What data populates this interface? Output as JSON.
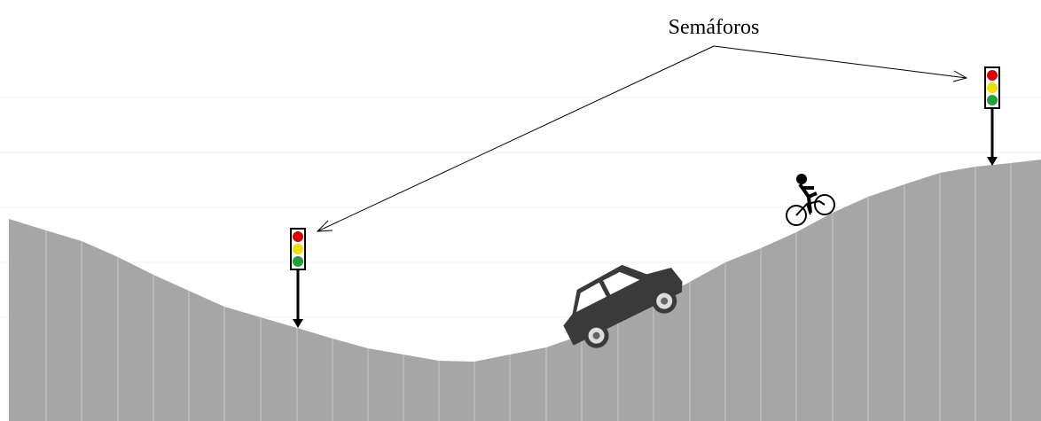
{
  "annotation": {
    "label": "Semáforos"
  }
}
